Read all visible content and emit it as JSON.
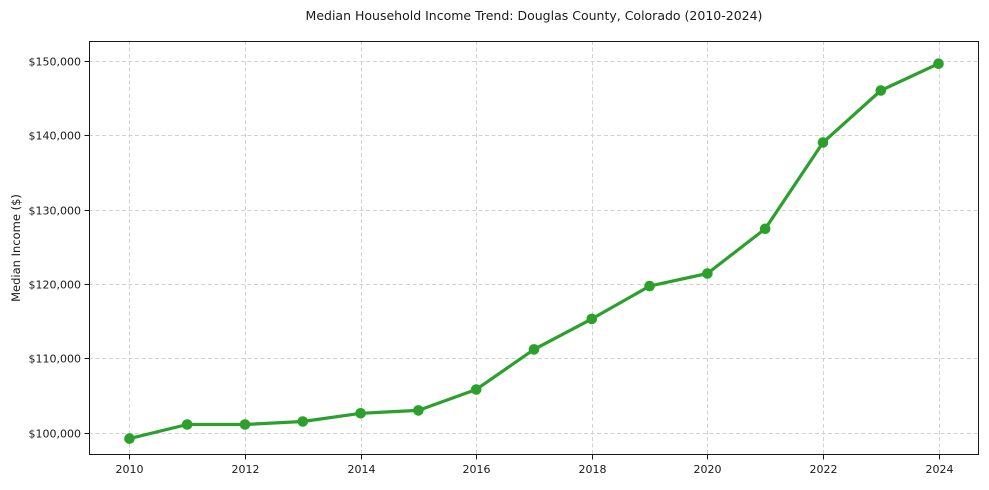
{
  "figure": {
    "background": "#ffffff"
  },
  "chart_data": {
    "type": "line",
    "title": "Median Household Income Trend: Douglas County, Colorado (2010-2024)",
    "xlabel": "",
    "ylabel": "Median Income ($)",
    "series_name": "Median household income",
    "x": [
      2010,
      2011,
      2012,
      2013,
      2014,
      2015,
      2016,
      2017,
      2018,
      2019,
      2020,
      2021,
      2022,
      2023,
      2024
    ],
    "values": [
      99200,
      101100,
      101100,
      101500,
      102600,
      103000,
      105800,
      111200,
      115300,
      119700,
      121400,
      127400,
      139000,
      146000,
      149600
    ],
    "xticks": [
      2010,
      2012,
      2014,
      2016,
      2018,
      2020,
      2022,
      2024
    ],
    "yticks": [
      100000,
      110000,
      120000,
      130000,
      140000,
      150000
    ],
    "ytick_labels": [
      "$100,000",
      "$110,000",
      "$120,000",
      "$130,000",
      "$140,000",
      "$150,000"
    ],
    "xlim": [
      2009.3,
      2024.7
    ],
    "ylim": [
      97000,
      152650
    ],
    "grid": true,
    "grid_style": "dashed",
    "line_style": "solid",
    "marker": "circle",
    "legend": "none",
    "line_color": "#2ca02c",
    "marker_color": "#2ca02c",
    "grid_color": "#d2d2d2",
    "axis_color": "#1a1a1a",
    "background": "#ffffff"
  }
}
